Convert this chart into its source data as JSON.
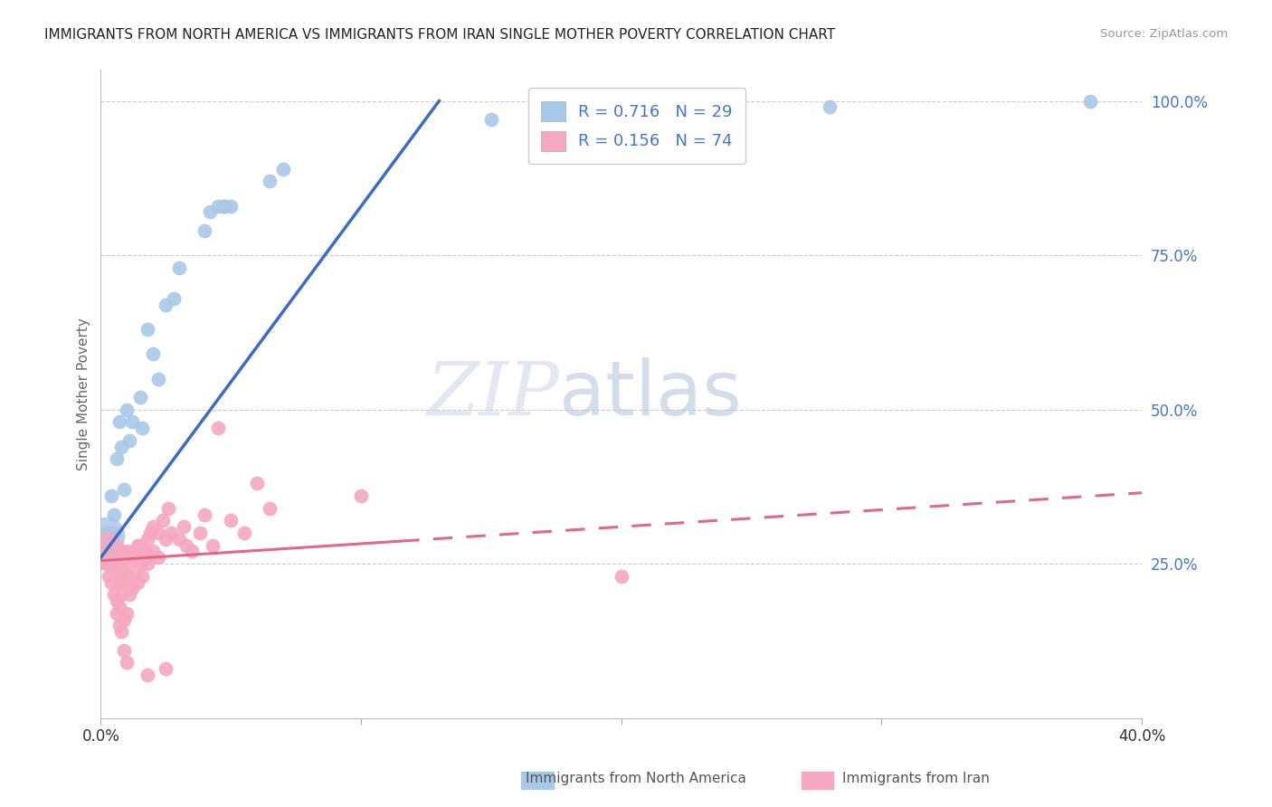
{
  "title": "IMMIGRANTS FROM NORTH AMERICA VS IMMIGRANTS FROM IRAN SINGLE MOTHER POVERTY CORRELATION CHART",
  "source": "Source: ZipAtlas.com",
  "ylabel": "Single Mother Poverty",
  "legend_blue_r": "R = 0.716",
  "legend_blue_n": "N = 29",
  "legend_pink_r": "R = 0.156",
  "legend_pink_n": "N = 74",
  "legend_blue_label": "Immigrants from North America",
  "legend_pink_label": "Immigrants from Iran",
  "blue_color": "#a8c8e8",
  "blue_line_color": "#3b6cc5",
  "pink_color": "#f5a8c0",
  "pink_line_color": "#e06888",
  "watermark_zip": "ZIP",
  "watermark_atlas": "atlas",
  "xlim": [
    0.0,
    0.4
  ],
  "ylim": [
    0.0,
    1.05
  ],
  "background_color": "#ffffff",
  "grid_color": "#cccccc",
  "blue_scatter": [
    [
      0.002,
      0.3
    ],
    [
      0.004,
      0.36
    ],
    [
      0.005,
      0.33
    ],
    [
      0.006,
      0.42
    ],
    [
      0.007,
      0.48
    ],
    [
      0.008,
      0.44
    ],
    [
      0.009,
      0.37
    ],
    [
      0.01,
      0.5
    ],
    [
      0.011,
      0.45
    ],
    [
      0.012,
      0.48
    ],
    [
      0.015,
      0.52
    ],
    [
      0.016,
      0.47
    ],
    [
      0.018,
      0.63
    ],
    [
      0.02,
      0.59
    ],
    [
      0.022,
      0.55
    ],
    [
      0.025,
      0.67
    ],
    [
      0.028,
      0.68
    ],
    [
      0.03,
      0.73
    ],
    [
      0.04,
      0.79
    ],
    [
      0.042,
      0.82
    ],
    [
      0.045,
      0.83
    ],
    [
      0.047,
      0.83
    ],
    [
      0.048,
      0.83
    ],
    [
      0.05,
      0.83
    ],
    [
      0.065,
      0.87
    ],
    [
      0.07,
      0.89
    ],
    [
      0.15,
      0.97
    ],
    [
      0.28,
      0.99
    ],
    [
      0.38,
      1.0
    ]
  ],
  "pink_scatter": [
    [
      0.001,
      0.27
    ],
    [
      0.002,
      0.25
    ],
    [
      0.002,
      0.28
    ],
    [
      0.003,
      0.26
    ],
    [
      0.003,
      0.23
    ],
    [
      0.003,
      0.3
    ],
    [
      0.004,
      0.28
    ],
    [
      0.004,
      0.25
    ],
    [
      0.004,
      0.22
    ],
    [
      0.005,
      0.27
    ],
    [
      0.005,
      0.24
    ],
    [
      0.005,
      0.3
    ],
    [
      0.005,
      0.2
    ],
    [
      0.006,
      0.26
    ],
    [
      0.006,
      0.23
    ],
    [
      0.006,
      0.19
    ],
    [
      0.006,
      0.17
    ],
    [
      0.007,
      0.25
    ],
    [
      0.007,
      0.22
    ],
    [
      0.007,
      0.18
    ],
    [
      0.007,
      0.15
    ],
    [
      0.008,
      0.27
    ],
    [
      0.008,
      0.24
    ],
    [
      0.008,
      0.2
    ],
    [
      0.008,
      0.14
    ],
    [
      0.009,
      0.26
    ],
    [
      0.009,
      0.22
    ],
    [
      0.009,
      0.16
    ],
    [
      0.009,
      0.11
    ],
    [
      0.01,
      0.27
    ],
    [
      0.01,
      0.23
    ],
    [
      0.01,
      0.17
    ],
    [
      0.01,
      0.09
    ],
    [
      0.011,
      0.25
    ],
    [
      0.011,
      0.2
    ],
    [
      0.012,
      0.26
    ],
    [
      0.012,
      0.21
    ],
    [
      0.013,
      0.27
    ],
    [
      0.013,
      0.23
    ],
    [
      0.014,
      0.28
    ],
    [
      0.014,
      0.22
    ],
    [
      0.015,
      0.28
    ],
    [
      0.015,
      0.25
    ],
    [
      0.016,
      0.27
    ],
    [
      0.016,
      0.23
    ],
    [
      0.017,
      0.27
    ],
    [
      0.018,
      0.29
    ],
    [
      0.018,
      0.25
    ],
    [
      0.019,
      0.3
    ],
    [
      0.019,
      0.26
    ],
    [
      0.02,
      0.31
    ],
    [
      0.02,
      0.27
    ],
    [
      0.022,
      0.3
    ],
    [
      0.022,
      0.26
    ],
    [
      0.024,
      0.32
    ],
    [
      0.025,
      0.29
    ],
    [
      0.026,
      0.34
    ],
    [
      0.027,
      0.3
    ],
    [
      0.03,
      0.29
    ],
    [
      0.032,
      0.31
    ],
    [
      0.033,
      0.28
    ],
    [
      0.035,
      0.27
    ],
    [
      0.038,
      0.3
    ],
    [
      0.04,
      0.33
    ],
    [
      0.043,
      0.28
    ],
    [
      0.045,
      0.47
    ],
    [
      0.05,
      0.32
    ],
    [
      0.055,
      0.3
    ],
    [
      0.06,
      0.38
    ],
    [
      0.065,
      0.34
    ],
    [
      0.1,
      0.36
    ],
    [
      0.2,
      0.23
    ],
    [
      0.018,
      0.07
    ],
    [
      0.025,
      0.08
    ]
  ],
  "blue_large_x": [
    0.002
  ],
  "blue_large_y": [
    0.295
  ],
  "pink_large_x": [
    0.002
  ],
  "pink_large_y": [
    0.27
  ]
}
